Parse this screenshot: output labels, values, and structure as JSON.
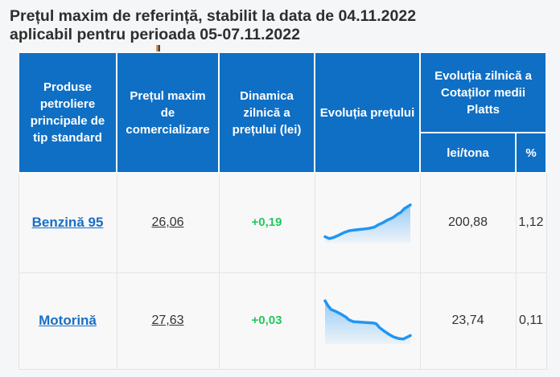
{
  "page": {
    "title_line1": "Prețul maxim de referință, stabilit la data de 04.11.2022",
    "title_line2": "aplicabil pentru perioada 05-07.11.2022"
  },
  "colors": {
    "header_bg": "#0f6fc4",
    "link_blue": "#1a6fc4",
    "positive_green": "#22c95c",
    "spark_line": "#2196f3"
  },
  "table": {
    "headers": {
      "products": "Produse petroliere principale de tip standard",
      "max_price": "Prețul maxim de comercializare",
      "daily_dynamic": "Dinamica zilnică a prețului (lei)",
      "price_evolution": "Evoluția prețului",
      "platts_group": "Evoluția zilnică a Cotaților medii Platts",
      "platts_lei": "lei/tona",
      "platts_pct": "%"
    },
    "rows": [
      {
        "product": "Benzină 95",
        "max_price": "26,06",
        "daily_change": "+0,19",
        "platts_lei": "200,88",
        "platts_pct": "1,12",
        "spark": [
          [
            0,
            0.88
          ],
          [
            0.05,
            0.93
          ],
          [
            0.1,
            0.9
          ],
          [
            0.16,
            0.84
          ],
          [
            0.22,
            0.77
          ],
          [
            0.28,
            0.72
          ],
          [
            0.34,
            0.7
          ],
          [
            0.42,
            0.68
          ],
          [
            0.5,
            0.66
          ],
          [
            0.58,
            0.62
          ],
          [
            0.63,
            0.55
          ],
          [
            0.68,
            0.5
          ],
          [
            0.73,
            0.43
          ],
          [
            0.78,
            0.38
          ],
          [
            0.81,
            0.34
          ],
          [
            0.85,
            0.27
          ],
          [
            0.89,
            0.22
          ],
          [
            0.93,
            0.12
          ],
          [
            1,
            0.02
          ]
        ]
      },
      {
        "product": "Motorină",
        "max_price": "27,63",
        "daily_change": "+0,03",
        "platts_lei": "23,74",
        "platts_pct": "0,11",
        "spark": [
          [
            0,
            0.04
          ],
          [
            0.03,
            0.14
          ],
          [
            0.07,
            0.24
          ],
          [
            0.12,
            0.28
          ],
          [
            0.18,
            0.34
          ],
          [
            0.24,
            0.41
          ],
          [
            0.28,
            0.48
          ],
          [
            0.33,
            0.52
          ],
          [
            0.4,
            0.53
          ],
          [
            0.48,
            0.54
          ],
          [
            0.56,
            0.55
          ],
          [
            0.6,
            0.57
          ],
          [
            0.64,
            0.66
          ],
          [
            0.68,
            0.72
          ],
          [
            0.74,
            0.8
          ],
          [
            0.8,
            0.87
          ],
          [
            0.86,
            0.91
          ],
          [
            0.92,
            0.92
          ],
          [
            1,
            0.84
          ]
        ]
      }
    ]
  },
  "chart_data": [
    {
      "type": "line",
      "title": "Evoluția prețului - Benzină 95",
      "trend": "rising",
      "x": [
        0,
        0.05,
        0.1,
        0.16,
        0.22,
        0.28,
        0.34,
        0.42,
        0.5,
        0.58,
        0.63,
        0.68,
        0.73,
        0.78,
        0.81,
        0.85,
        0.89,
        0.93,
        1
      ],
      "values_relative": [
        0.12,
        0.07,
        0.1,
        0.16,
        0.23,
        0.28,
        0.3,
        0.32,
        0.34,
        0.38,
        0.45,
        0.5,
        0.57,
        0.62,
        0.66,
        0.73,
        0.78,
        0.88,
        0.98
      ],
      "legend_position": "none",
      "grid": false
    },
    {
      "type": "line",
      "title": "Evoluția prețului - Motorină",
      "trend": "falling",
      "x": [
        0,
        0.03,
        0.07,
        0.12,
        0.18,
        0.24,
        0.28,
        0.33,
        0.4,
        0.48,
        0.56,
        0.6,
        0.64,
        0.68,
        0.74,
        0.8,
        0.86,
        0.92,
        1
      ],
      "values_relative": [
        0.96,
        0.86,
        0.76,
        0.72,
        0.66,
        0.59,
        0.52,
        0.48,
        0.47,
        0.46,
        0.45,
        0.43,
        0.34,
        0.28,
        0.2,
        0.13,
        0.09,
        0.08,
        0.16
      ],
      "legend_position": "none",
      "grid": false
    }
  ]
}
